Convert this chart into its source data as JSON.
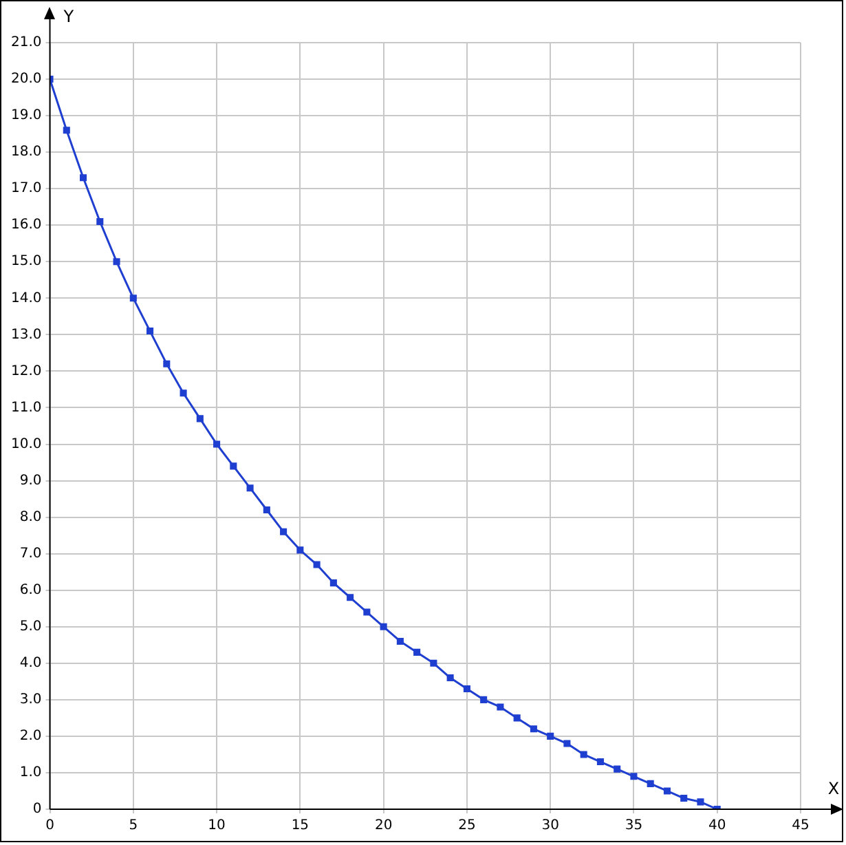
{
  "chart_data": {
    "type": "line",
    "xlabel": "X",
    "ylabel": "Y",
    "x": [
      0,
      1,
      2,
      3,
      4,
      5,
      6,
      7,
      8,
      9,
      10,
      11,
      12,
      13,
      14,
      15,
      16,
      17,
      18,
      19,
      20,
      21,
      22,
      23,
      24,
      25,
      26,
      27,
      28,
      29,
      30,
      31,
      32,
      33,
      34,
      35,
      36,
      37,
      38,
      39,
      40
    ],
    "series": [
      {
        "color": "#1f3fd0",
        "values": [
          20,
          18.6,
          17.3,
          16.1,
          15,
          14,
          13.1,
          12.2,
          11.4,
          10.7,
          10,
          9.4,
          8.8,
          8.2,
          7.6,
          7.1,
          6.7,
          6.2,
          5.8,
          5.4,
          5,
          4.6,
          4.3,
          4,
          3.6,
          3.3,
          3,
          2.8,
          2.5,
          2.2,
          2,
          1.8,
          1.5,
          1.3,
          1.1,
          0.9,
          0.7,
          0.5,
          0.3,
          0.2,
          0
        ]
      }
    ],
    "xlim": [
      0,
      45
    ],
    "xticks": [
      0,
      5,
      10,
      15,
      20,
      25,
      30,
      35,
      40,
      45
    ],
    "ylim": [
      0,
      21
    ],
    "yticks": [
      0,
      {
        "value": 1,
        "label": "1.0"
      },
      {
        "value": 2,
        "label": "2.0"
      },
      {
        "value": 3,
        "label": "3.0"
      },
      {
        "value": 4,
        "label": "4.0"
      },
      {
        "value": 5,
        "label": "5.0"
      },
      {
        "value": 6,
        "label": "6.0"
      },
      {
        "value": 7,
        "label": "7.0"
      },
      {
        "value": 8,
        "label": "8.0"
      },
      {
        "value": 9,
        "label": "9.0"
      },
      {
        "value": 10,
        "label": "10.0"
      },
      {
        "value": 11,
        "label": "11.0"
      },
      {
        "value": 12,
        "label": "12.0"
      },
      {
        "value": 13,
        "label": "13.0"
      },
      {
        "value": 14,
        "label": "14.0"
      },
      {
        "value": 15,
        "label": "15.0"
      },
      {
        "value": 16,
        "label": "16.0"
      },
      {
        "value": 17,
        "label": "17.0"
      },
      {
        "value": 18,
        "label": "18.0"
      },
      {
        "value": 19,
        "label": "19.0"
      },
      {
        "value": 20,
        "label": "20.0"
      },
      {
        "value": 21,
        "label": "21.0"
      }
    ],
    "grid": true,
    "legend": false,
    "marker": "square",
    "line_style": "solid"
  }
}
